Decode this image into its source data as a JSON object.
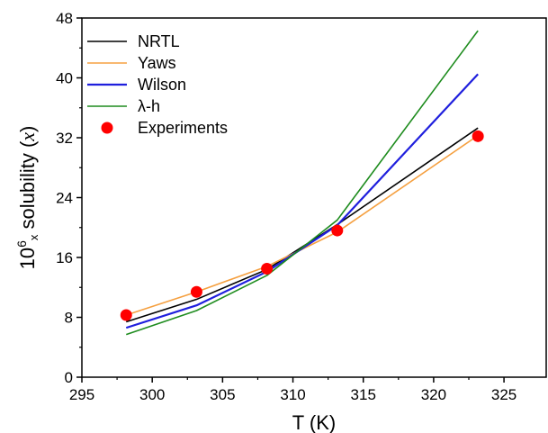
{
  "chart_data": {
    "type": "line",
    "title": "",
    "xlabel": "T (K)",
    "ylabel_parts": {
      "base": "10",
      "exp": "6",
      "sub": "x",
      "text": " solubility (",
      "var": "x",
      "close": ")"
    },
    "xlim": [
      295,
      328
    ],
    "ylim": [
      0,
      48
    ],
    "xticks": [
      295,
      300,
      305,
      310,
      315,
      320,
      325
    ],
    "yticks": [
      0,
      8,
      16,
      24,
      32,
      40,
      48
    ],
    "legend_position": "top-left",
    "grid": false,
    "series": [
      {
        "name": "NRTL",
        "kind": "line",
        "color": "#000000",
        "width": 1.6,
        "x": [
          298.15,
          303.15,
          308.15,
          313.15,
          323.15
        ],
        "y": [
          7.4,
          10.4,
          14.4,
          20.4,
          33.3
        ]
      },
      {
        "name": "Yaws",
        "kind": "line",
        "color": "#f5a040",
        "width": 1.6,
        "x": [
          298.15,
          303.15,
          308.15,
          313.15,
          323.15
        ],
        "y": [
          8.3,
          11.4,
          14.8,
          19.4,
          32.3
        ]
      },
      {
        "name": "Wilson",
        "kind": "line",
        "color": "#1f1fdd",
        "width": 2.2,
        "x": [
          298.15,
          303.15,
          308.15,
          313.15,
          323.15
        ],
        "y": [
          6.6,
          9.6,
          14.1,
          20.3,
          40.5
        ]
      },
      {
        "name": "λ-h",
        "kind": "line",
        "color": "#1e8c1e",
        "width": 1.6,
        "x": [
          298.15,
          303.15,
          308.15,
          313.15,
          323.15
        ],
        "y": [
          5.7,
          8.9,
          13.6,
          21.0,
          46.3
        ]
      },
      {
        "name": "Experiments",
        "kind": "scatter",
        "color": "#ff0000",
        "x": [
          298.15,
          303.15,
          308.15,
          313.15,
          323.15
        ],
        "y": [
          8.3,
          11.4,
          14.5,
          19.6,
          32.2
        ]
      }
    ]
  }
}
